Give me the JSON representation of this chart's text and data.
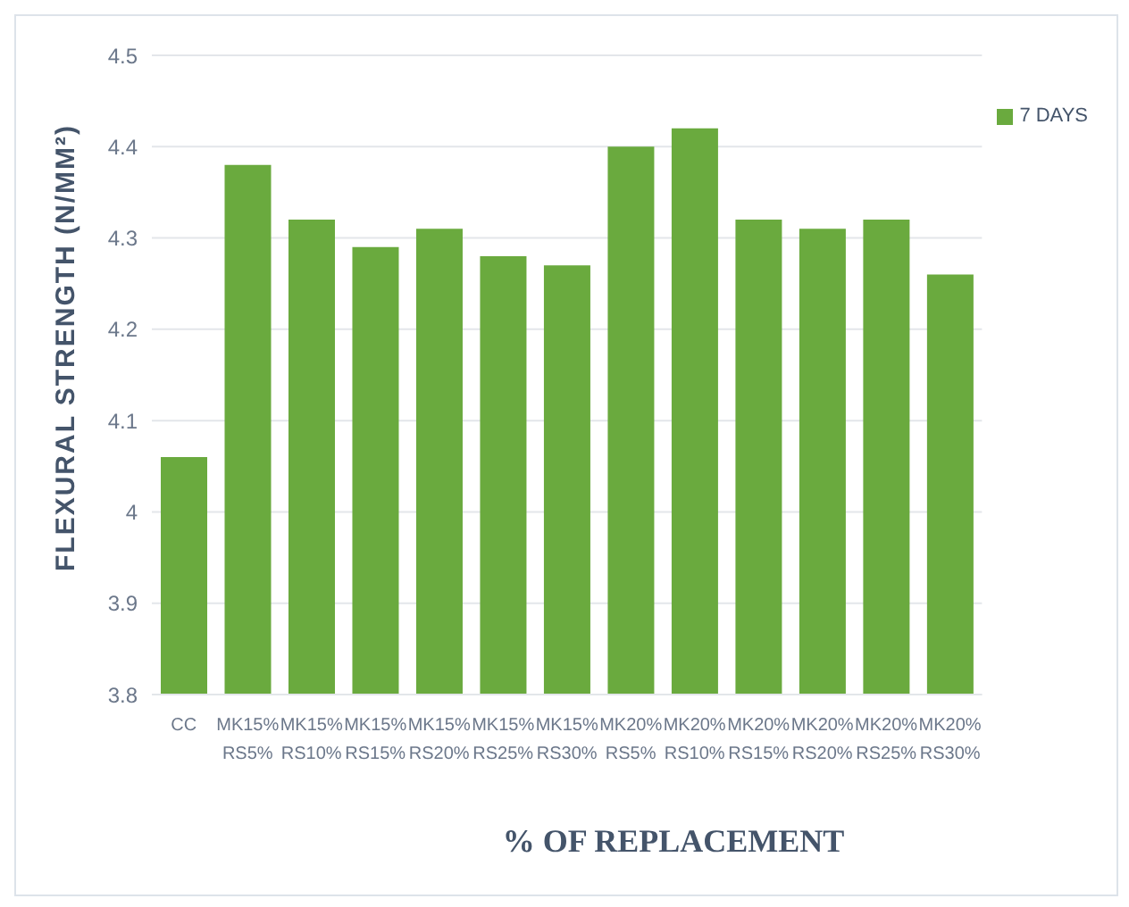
{
  "chart_data": {
    "type": "bar",
    "xlabel": "% OF REPLACEMENT",
    "ylabel": "FLEXURAL STRENGTH (N/MM²)",
    "categories": [
      "CC",
      "MK15% RS5%",
      "MK15% RS10%",
      "MK15% RS15%",
      "MK15% RS20%",
      "MK15% RS25%",
      "MK15% RS30%",
      "MK20% RS5%",
      "MK20% RS10%",
      "MK20% RS15%",
      "MK20% RS20%",
      "MK20% RS25%",
      "MK20% RS30%"
    ],
    "series": [
      {
        "name": "7 DAYS",
        "color": "#6aaa3e",
        "values": [
          4.06,
          4.38,
          4.32,
          4.29,
          4.31,
          4.28,
          4.27,
          4.4,
          4.42,
          4.32,
          4.31,
          4.32,
          4.26
        ]
      }
    ],
    "ylim": [
      3.8,
      4.5
    ],
    "yticks": [
      3.8,
      3.9,
      4,
      4.1,
      4.2,
      4.3,
      4.4,
      4.5
    ],
    "grid": "y",
    "legend": "top right"
  }
}
